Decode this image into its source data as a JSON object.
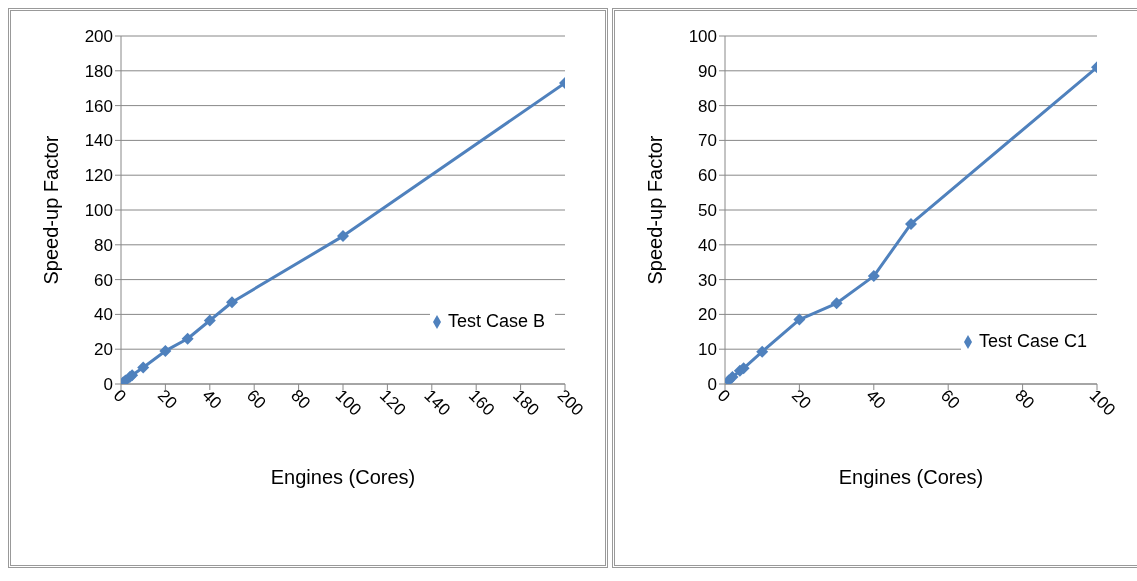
{
  "chart_data": [
    {
      "type": "line",
      "xlabel": "Engines (Cores)",
      "ylabel": "Speed-up Factor",
      "x": [
        1,
        2,
        4,
        5,
        10,
        20,
        30,
        40,
        50,
        100,
        200
      ],
      "series": [
        {
          "name": "Test Case B",
          "color": "#4f81bd",
          "values": [
            1,
            2,
            4,
            5,
            9.5,
            19,
            26,
            36.5,
            47,
            85,
            173
          ]
        }
      ],
      "xlim": [
        0,
        200
      ],
      "xticks": [
        0,
        20,
        40,
        60,
        80,
        100,
        120,
        140,
        160,
        180,
        200
      ],
      "ylim": [
        0,
        200
      ],
      "yticks": [
        0,
        20,
        40,
        60,
        80,
        100,
        120,
        140,
        160,
        180,
        200
      ],
      "grid": "y",
      "legend": "right",
      "marker": "diamond",
      "line_style": "solid"
    },
    {
      "type": "line",
      "xlabel": "Engines (Cores)",
      "ylabel": "Speed-up Factor",
      "x": [
        1,
        2,
        4,
        5,
        10,
        20,
        30,
        40,
        50,
        100
      ],
      "series": [
        {
          "name": "Test Case C1",
          "color": "#4f81bd",
          "values": [
            1,
            2,
            3.8,
            4.5,
            9.3,
            18.5,
            23.2,
            31,
            46,
            91
          ]
        }
      ],
      "xlim": [
        0,
        100
      ],
      "xticks": [
        0,
        20,
        40,
        60,
        80,
        100
      ],
      "ylim": [
        0,
        100
      ],
      "yticks": [
        0,
        10,
        20,
        30,
        40,
        50,
        60,
        70,
        80,
        90,
        100
      ],
      "grid": "y",
      "legend": "bottom right",
      "marker": "diamond",
      "line_style": "solid"
    }
  ]
}
